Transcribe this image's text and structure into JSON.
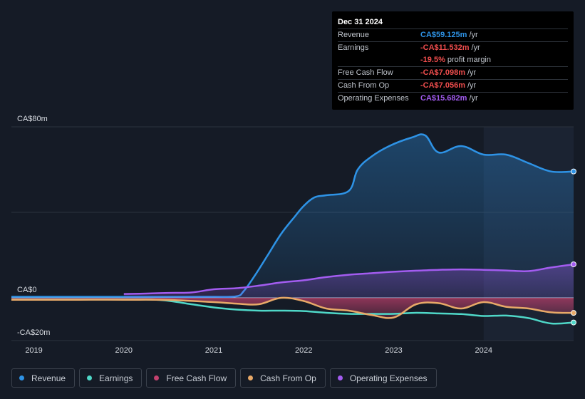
{
  "tooltip": {
    "date": "Dec 31 2024",
    "rows": [
      {
        "label": "Revenue",
        "value": "CA$59.125m",
        "unit": "/yr",
        "color": "#2e93e6"
      },
      {
        "label": "Earnings",
        "value": "-CA$11.532m",
        "unit": "/yr",
        "color": "#ef4d4d"
      },
      {
        "label": "",
        "value": "-19.5%",
        "unit": "profit margin",
        "color": "#ef4d4d"
      },
      {
        "label": "Free Cash Flow",
        "value": "-CA$7.098m",
        "unit": "/yr",
        "color": "#ef4d4d"
      },
      {
        "label": "Cash From Op",
        "value": "-CA$7.056m",
        "unit": "/yr",
        "color": "#ef4d4d"
      },
      {
        "label": "Operating Expenses",
        "value": "CA$15.682m",
        "unit": "/yr",
        "color": "#a35cf0"
      }
    ]
  },
  "legend": [
    {
      "label": "Revenue",
      "color": "#2e93e6"
    },
    {
      "label": "Earnings",
      "color": "#4fd8c8"
    },
    {
      "label": "Free Cash Flow",
      "color": "#c2416e"
    },
    {
      "label": "Cash From Op",
      "color": "#e8a968"
    },
    {
      "label": "Operating Expenses",
      "color": "#a35cf0"
    }
  ],
  "chart_data": {
    "type": "line",
    "title": "",
    "y_tick_labels": [
      "CA$80m",
      "CA$0",
      "-CA$20m"
    ],
    "ylim": [
      -20,
      80
    ],
    "x_tick_labels": [
      "2019",
      "2020",
      "2021",
      "2022",
      "2023",
      "2024"
    ],
    "x_ticks": [
      2019.0,
      2020.0,
      2021.0,
      2022.0,
      2023.0,
      2024.0
    ],
    "xlim": [
      2018.75,
      2025.0
    ],
    "forecast_region_start": 2024.0,
    "series": [
      {
        "name": "Revenue",
        "color": "#2e93e6",
        "area": true,
        "x": [
          2018.75,
          2019.5,
          2020.0,
          2020.5,
          2021.0,
          2021.25,
          2021.33,
          2021.45,
          2021.6,
          2021.75,
          2021.9,
          2022.0,
          2022.12,
          2022.25,
          2022.5,
          2022.6,
          2022.75,
          2022.95,
          2023.2,
          2023.35,
          2023.5,
          2023.75,
          2024.0,
          2024.25,
          2024.5,
          2024.75,
          2025.0
        ],
        "y": [
          0.5,
          0.5,
          0.5,
          0.5,
          0.5,
          0.7,
          3,
          10,
          20,
          30,
          38,
          43,
          47,
          48,
          50,
          60,
          66,
          71,
          75,
          76,
          68,
          71,
          67,
          67,
          63,
          59.1,
          59.125
        ]
      },
      {
        "name": "Earnings",
        "color": "#4fd8c8",
        "x": [
          2018.75,
          2019.5,
          2020.0,
          2020.4,
          2020.75,
          2021.0,
          2021.25,
          2021.5,
          2021.75,
          2022.0,
          2022.25,
          2022.5,
          2022.75,
          2023.0,
          2023.25,
          2023.5,
          2023.75,
          2024.0,
          2024.25,
          2024.5,
          2024.75,
          2025.0
        ],
        "y": [
          -0.8,
          -0.8,
          -0.8,
          -1,
          -3,
          -4.5,
          -5.5,
          -6,
          -6,
          -6.2,
          -7,
          -7.5,
          -7.5,
          -7.5,
          -7,
          -7.3,
          -7.6,
          -8.5,
          -8.3,
          -9.5,
          -12,
          -11.532
        ]
      },
      {
        "name": "Free Cash Flow",
        "color": "#c2416e",
        "area": true,
        "x": [
          2018.75,
          2019.5,
          2020.0,
          2020.5,
          2021.0,
          2021.25,
          2021.5,
          2021.75,
          2022.0,
          2022.25,
          2022.5,
          2022.75,
          2023.0,
          2023.25,
          2023.5,
          2023.75,
          2024.0,
          2024.25,
          2024.5,
          2024.75,
          2025.0
        ],
        "y": [
          -0.9,
          -0.9,
          -0.9,
          -1,
          -2,
          -2.7,
          -3,
          0,
          -1.5,
          -5,
          -6,
          -8,
          -9.2,
          -3,
          -2.5,
          -5,
          -2,
          -4.2,
          -5,
          -6.8,
          -7.098
        ]
      },
      {
        "name": "Cash From Op",
        "color": "#e8a968",
        "x": [
          2018.75,
          2019.5,
          2020.0,
          2020.5,
          2021.0,
          2021.25,
          2021.5,
          2021.75,
          2022.0,
          2022.25,
          2022.5,
          2022.75,
          2023.0,
          2023.25,
          2023.5,
          2023.75,
          2024.0,
          2024.25,
          2024.5,
          2024.75,
          2025.0
        ],
        "y": [
          -0.9,
          -0.9,
          -0.9,
          -1,
          -2,
          -2.7,
          -3,
          0,
          -1.5,
          -5,
          -6,
          -8,
          -9.2,
          -3,
          -2.5,
          -5,
          -2,
          -4.2,
          -5,
          -6.8,
          -7.056
        ]
      },
      {
        "name": "Operating Expenses",
        "color": "#a35cf0",
        "x": [
          2020.0,
          2020.25,
          2020.5,
          2020.75,
          2021.0,
          2021.25,
          2021.5,
          2021.75,
          2022.0,
          2022.25,
          2022.5,
          2022.75,
          2023.0,
          2023.25,
          2023.5,
          2023.75,
          2024.0,
          2024.25,
          2024.5,
          2024.75,
          2025.0
        ],
        "y": [
          1.8,
          2,
          2.3,
          2.5,
          4,
          4.5,
          5.7,
          7.2,
          8.2,
          9.7,
          10.8,
          11.5,
          12.2,
          12.7,
          13.1,
          13.3,
          13.1,
          12.8,
          12.5,
          14.2,
          15.682
        ]
      }
    ]
  }
}
